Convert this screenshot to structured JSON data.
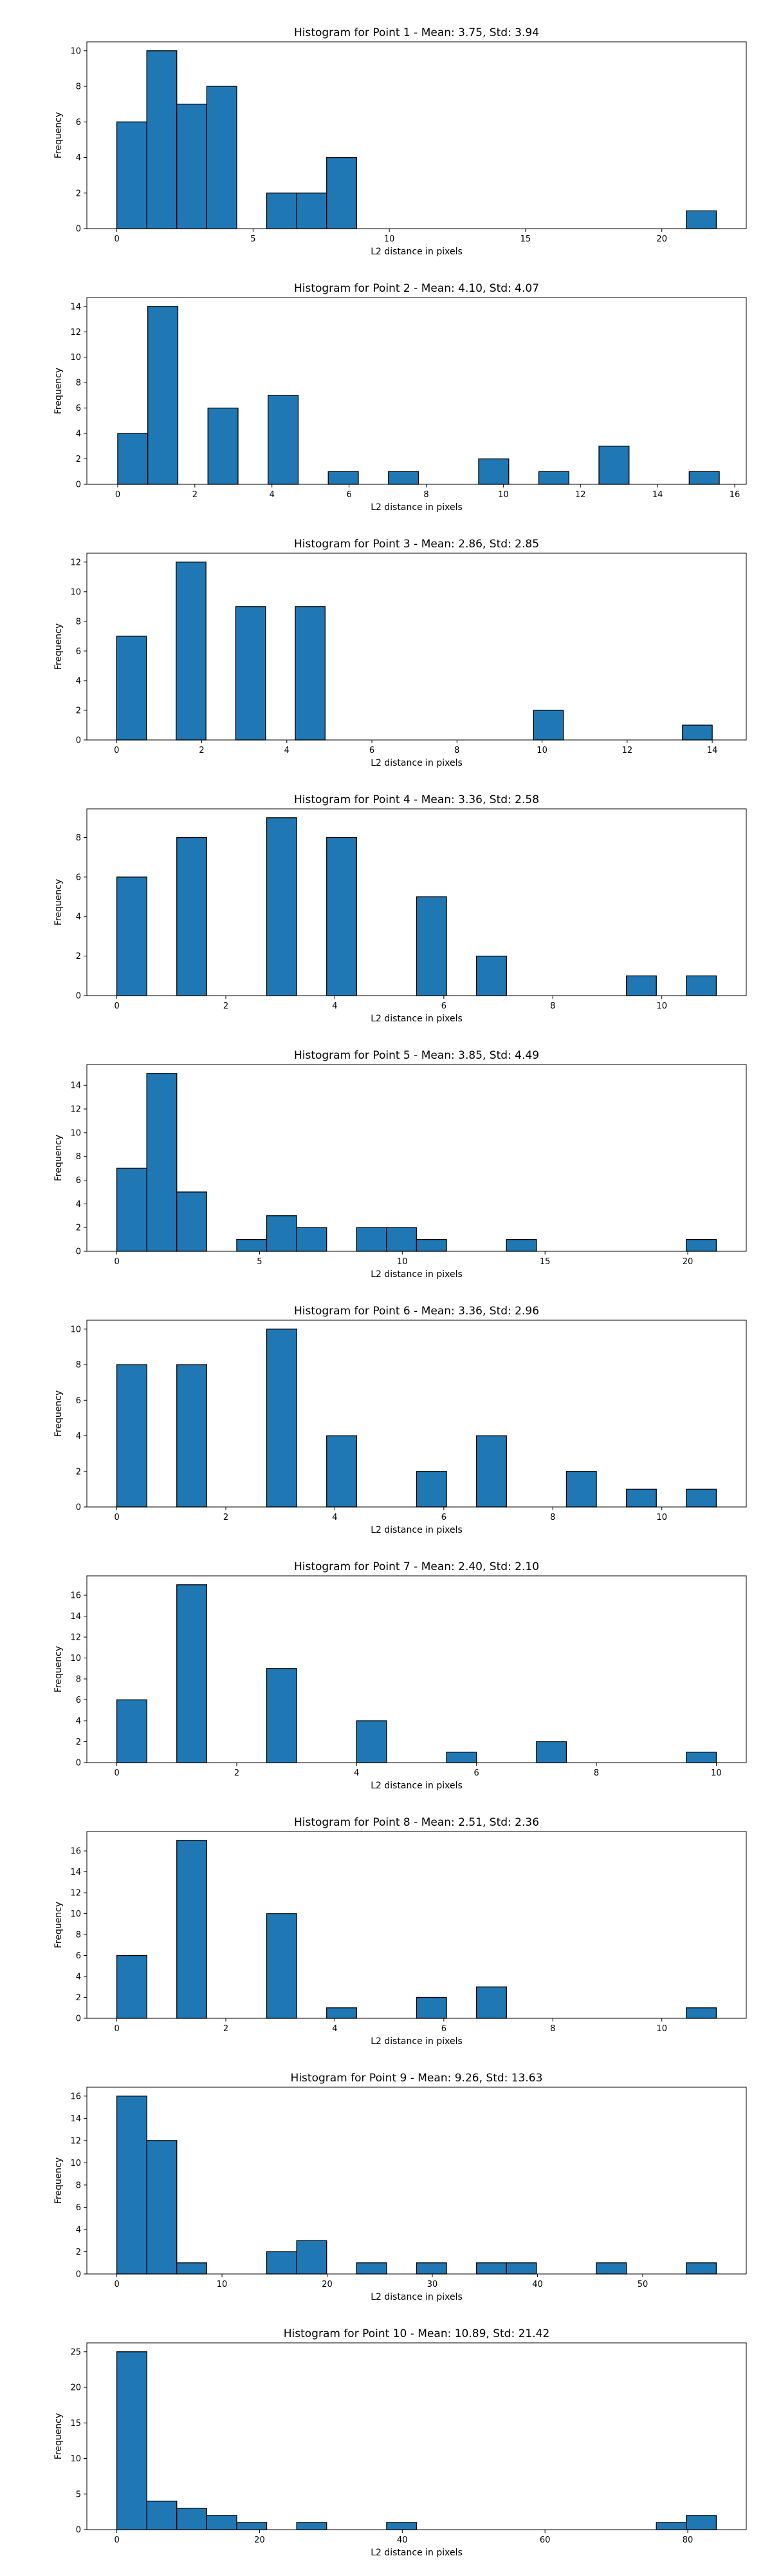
{
  "chart_data": [
    {
      "type": "bar",
      "title": "Histogram for Point 1 - Mean: 3.75, Std: 3.94",
      "xlabel": "L2 distance in pixels",
      "ylabel": "Frequency",
      "xlim": [
        -1.1,
        23.1
      ],
      "ylim": [
        0,
        10.5
      ],
      "xticks": [
        0,
        5,
        10,
        15,
        20
      ],
      "yticks": [
        0,
        2,
        4,
        6,
        8,
        10
      ],
      "bins": [
        {
          "x0": 0.0,
          "x1": 1.1,
          "value": 6
        },
        {
          "x0": 1.1,
          "x1": 2.2,
          "value": 10
        },
        {
          "x0": 2.2,
          "x1": 3.3,
          "value": 7
        },
        {
          "x0": 3.3,
          "x1": 4.4,
          "value": 8
        },
        {
          "x0": 5.5,
          "x1": 6.6,
          "value": 2
        },
        {
          "x0": 6.6,
          "x1": 7.7,
          "value": 2
        },
        {
          "x0": 7.7,
          "x1": 8.8,
          "value": 4
        },
        {
          "x0": 20.9,
          "x1": 22.0,
          "value": 1
        }
      ]
    },
    {
      "type": "bar",
      "title": "Histogram for Point 2 - Mean: 4.10, Std: 4.07",
      "xlabel": "L2 distance in pixels",
      "ylabel": "Frequency",
      "xlim": [
        -0.8,
        16.3
      ],
      "ylim": [
        0,
        14.7
      ],
      "xticks": [
        0,
        2,
        4,
        6,
        8,
        10,
        12,
        14,
        16
      ],
      "yticks": [
        0,
        2,
        4,
        6,
        8,
        10,
        12,
        14
      ],
      "bins": [
        {
          "x0": 0.0,
          "x1": 0.78,
          "value": 4
        },
        {
          "x0": 0.78,
          "x1": 1.56,
          "value": 14
        },
        {
          "x0": 2.34,
          "x1": 3.12,
          "value": 6
        },
        {
          "x0": 3.9,
          "x1": 4.68,
          "value": 7
        },
        {
          "x0": 5.46,
          "x1": 6.24,
          "value": 1
        },
        {
          "x0": 7.02,
          "x1": 7.8,
          "value": 1
        },
        {
          "x0": 9.36,
          "x1": 10.14,
          "value": 2
        },
        {
          "x0": 10.92,
          "x1": 11.7,
          "value": 1
        },
        {
          "x0": 12.48,
          "x1": 13.26,
          "value": 3
        },
        {
          "x0": 14.82,
          "x1": 15.6,
          "value": 1
        }
      ]
    },
    {
      "type": "bar",
      "title": "Histogram for Point 3 - Mean: 2.86, Std: 2.85",
      "xlabel": "L2 distance in pixels",
      "ylabel": "Frequency",
      "xlim": [
        -0.7,
        14.8
      ],
      "ylim": [
        0,
        12.6
      ],
      "xticks": [
        0,
        2,
        4,
        6,
        8,
        10,
        12,
        14
      ],
      "yticks": [
        0,
        2,
        4,
        6,
        8,
        10,
        12
      ],
      "bins": [
        {
          "x0": 0.0,
          "x1": 0.7,
          "value": 7
        },
        {
          "x0": 1.4,
          "x1": 2.1,
          "value": 12
        },
        {
          "x0": 2.8,
          "x1": 3.5,
          "value": 9
        },
        {
          "x0": 4.2,
          "x1": 4.9,
          "value": 9
        },
        {
          "x0": 9.8,
          "x1": 10.5,
          "value": 2
        },
        {
          "x0": 13.3,
          "x1": 14.0,
          "value": 1
        }
      ]
    },
    {
      "type": "bar",
      "title": "Histogram for Point 4 - Mean: 3.36, Std: 2.58",
      "xlabel": "L2 distance in pixels",
      "ylabel": "Frequency",
      "xlim": [
        -0.55,
        11.55
      ],
      "ylim": [
        0,
        9.45
      ],
      "xticks": [
        0,
        2,
        4,
        6,
        8,
        10
      ],
      "yticks": [
        0,
        2,
        4,
        6,
        8
      ],
      "bins": [
        {
          "x0": 0.0,
          "x1": 0.55,
          "value": 6
        },
        {
          "x0": 1.1,
          "x1": 1.65,
          "value": 8
        },
        {
          "x0": 2.75,
          "x1": 3.3,
          "value": 9
        },
        {
          "x0": 3.85,
          "x1": 4.4,
          "value": 8
        },
        {
          "x0": 5.5,
          "x1": 6.05,
          "value": 5
        },
        {
          "x0": 6.6,
          "x1": 7.15,
          "value": 2
        },
        {
          "x0": 9.35,
          "x1": 9.9,
          "value": 1
        },
        {
          "x0": 10.45,
          "x1": 11.0,
          "value": 1
        }
      ]
    },
    {
      "type": "bar",
      "title": "Histogram for Point 5 - Mean: 3.85, Std: 4.49",
      "xlabel": "L2 distance in pixels",
      "ylabel": "Frequency",
      "xlim": [
        -1.05,
        22.05
      ],
      "ylim": [
        0,
        15.75
      ],
      "xticks": [
        0,
        5,
        10,
        15,
        20
      ],
      "yticks": [
        0,
        2,
        4,
        6,
        8,
        10,
        12,
        14
      ],
      "bins": [
        {
          "x0": 0.0,
          "x1": 1.05,
          "value": 7
        },
        {
          "x0": 1.05,
          "x1": 2.1,
          "value": 15
        },
        {
          "x0": 2.1,
          "x1": 3.15,
          "value": 5
        },
        {
          "x0": 4.2,
          "x1": 5.25,
          "value": 1
        },
        {
          "x0": 5.25,
          "x1": 6.3,
          "value": 3
        },
        {
          "x0": 6.3,
          "x1": 7.35,
          "value": 2
        },
        {
          "x0": 8.4,
          "x1": 9.45,
          "value": 2
        },
        {
          "x0": 9.45,
          "x1": 10.5,
          "value": 2
        },
        {
          "x0": 10.5,
          "x1": 11.55,
          "value": 1
        },
        {
          "x0": 13.65,
          "x1": 14.7,
          "value": 1
        },
        {
          "x0": 19.95,
          "x1": 21.0,
          "value": 1
        }
      ]
    },
    {
      "type": "bar",
      "title": "Histogram for Point 6 - Mean: 3.36, Std: 2.96",
      "xlabel": "L2 distance in pixels",
      "ylabel": "Frequency",
      "xlim": [
        -0.55,
        11.55
      ],
      "ylim": [
        0,
        10.5
      ],
      "xticks": [
        0,
        2,
        4,
        6,
        8,
        10
      ],
      "yticks": [
        0,
        2,
        4,
        6,
        8,
        10
      ],
      "bins": [
        {
          "x0": 0.0,
          "x1": 0.55,
          "value": 8
        },
        {
          "x0": 1.1,
          "x1": 1.65,
          "value": 8
        },
        {
          "x0": 2.75,
          "x1": 3.3,
          "value": 10
        },
        {
          "x0": 3.85,
          "x1": 4.4,
          "value": 4
        },
        {
          "x0": 5.5,
          "x1": 6.05,
          "value": 2
        },
        {
          "x0": 6.6,
          "x1": 7.15,
          "value": 4
        },
        {
          "x0": 8.25,
          "x1": 8.8,
          "value": 2
        },
        {
          "x0": 9.35,
          "x1": 9.9,
          "value": 1
        },
        {
          "x0": 10.45,
          "x1": 11.0,
          "value": 1
        }
      ]
    },
    {
      "type": "bar",
      "title": "Histogram for Point 7 - Mean: 2.40, Std: 2.10",
      "xlabel": "L2 distance in pixels",
      "ylabel": "Frequency",
      "xlim": [
        -0.5,
        10.5
      ],
      "ylim": [
        0,
        17.85
      ],
      "xticks": [
        0,
        2,
        4,
        6,
        8,
        10
      ],
      "yticks": [
        0,
        2,
        4,
        6,
        8,
        10,
        12,
        14,
        16
      ],
      "bins": [
        {
          "x0": 0.0,
          "x1": 0.5,
          "value": 6
        },
        {
          "x0": 1.0,
          "x1": 1.5,
          "value": 17
        },
        {
          "x0": 2.5,
          "x1": 3.0,
          "value": 9
        },
        {
          "x0": 4.0,
          "x1": 4.5,
          "value": 4
        },
        {
          "x0": 5.5,
          "x1": 6.0,
          "value": 1
        },
        {
          "x0": 7.0,
          "x1": 7.5,
          "value": 2
        },
        {
          "x0": 9.5,
          "x1": 10.0,
          "value": 1
        }
      ]
    },
    {
      "type": "bar",
      "title": "Histogram for Point 8 - Mean: 2.51, Std: 2.36",
      "xlabel": "L2 distance in pixels",
      "ylabel": "Frequency",
      "xlim": [
        -0.55,
        11.55
      ],
      "ylim": [
        0,
        17.85
      ],
      "xticks": [
        0,
        2,
        4,
        6,
        8,
        10
      ],
      "yticks": [
        0,
        2,
        4,
        6,
        8,
        10,
        12,
        14,
        16
      ],
      "bins": [
        {
          "x0": 0.0,
          "x1": 0.55,
          "value": 6
        },
        {
          "x0": 1.1,
          "x1": 1.65,
          "value": 17
        },
        {
          "x0": 2.75,
          "x1": 3.3,
          "value": 10
        },
        {
          "x0": 3.85,
          "x1": 4.4,
          "value": 1
        },
        {
          "x0": 5.5,
          "x1": 6.05,
          "value": 2
        },
        {
          "x0": 6.6,
          "x1": 7.15,
          "value": 3
        },
        {
          "x0": 10.45,
          "x1": 11.0,
          "value": 1
        }
      ]
    },
    {
      "type": "bar",
      "title": "Histogram for Point 9 - Mean: 9.26, Std: 13.63",
      "xlabel": "L2 distance in pixels",
      "ylabel": "Frequency",
      "xlim": [
        -2.85,
        59.85
      ],
      "ylim": [
        0,
        16.8
      ],
      "xticks": [
        0,
        10,
        20,
        30,
        40,
        50
      ],
      "yticks": [
        0,
        2,
        4,
        6,
        8,
        10,
        12,
        14,
        16
      ],
      "bins": [
        {
          "x0": 0.0,
          "x1": 2.85,
          "value": 16
        },
        {
          "x0": 2.85,
          "x1": 5.7,
          "value": 12
        },
        {
          "x0": 5.7,
          "x1": 8.55,
          "value": 1
        },
        {
          "x0": 14.25,
          "x1": 17.1,
          "value": 2
        },
        {
          "x0": 17.1,
          "x1": 19.95,
          "value": 3
        },
        {
          "x0": 22.8,
          "x1": 25.65,
          "value": 1
        },
        {
          "x0": 28.5,
          "x1": 31.35,
          "value": 1
        },
        {
          "x0": 34.2,
          "x1": 37.05,
          "value": 1
        },
        {
          "x0": 37.05,
          "x1": 39.9,
          "value": 1
        },
        {
          "x0": 45.6,
          "x1": 48.45,
          "value": 1
        },
        {
          "x0": 54.15,
          "x1": 57.0,
          "value": 1
        }
      ]
    },
    {
      "type": "bar",
      "title": "Histogram for Point 10 - Mean: 10.89, Std: 21.42",
      "xlabel": "L2 distance in pixels",
      "ylabel": "Frequency",
      "xlim": [
        -4.2,
        88.2
      ],
      "ylim": [
        0,
        26.25
      ],
      "xticks": [
        0,
        20,
        40,
        60,
        80
      ],
      "yticks": [
        0,
        5,
        10,
        15,
        20,
        25
      ],
      "bins": [
        {
          "x0": 0.0,
          "x1": 4.2,
          "value": 25
        },
        {
          "x0": 4.2,
          "x1": 8.4,
          "value": 4
        },
        {
          "x0": 8.4,
          "x1": 12.6,
          "value": 3
        },
        {
          "x0": 12.6,
          "x1": 16.8,
          "value": 2
        },
        {
          "x0": 16.8,
          "x1": 21.0,
          "value": 1
        },
        {
          "x0": 25.2,
          "x1": 29.4,
          "value": 1
        },
        {
          "x0": 37.8,
          "x1": 42.0,
          "value": 1
        },
        {
          "x0": 75.6,
          "x1": 79.8,
          "value": 1
        },
        {
          "x0": 79.8,
          "x1": 84.0,
          "value": 2
        }
      ]
    }
  ]
}
